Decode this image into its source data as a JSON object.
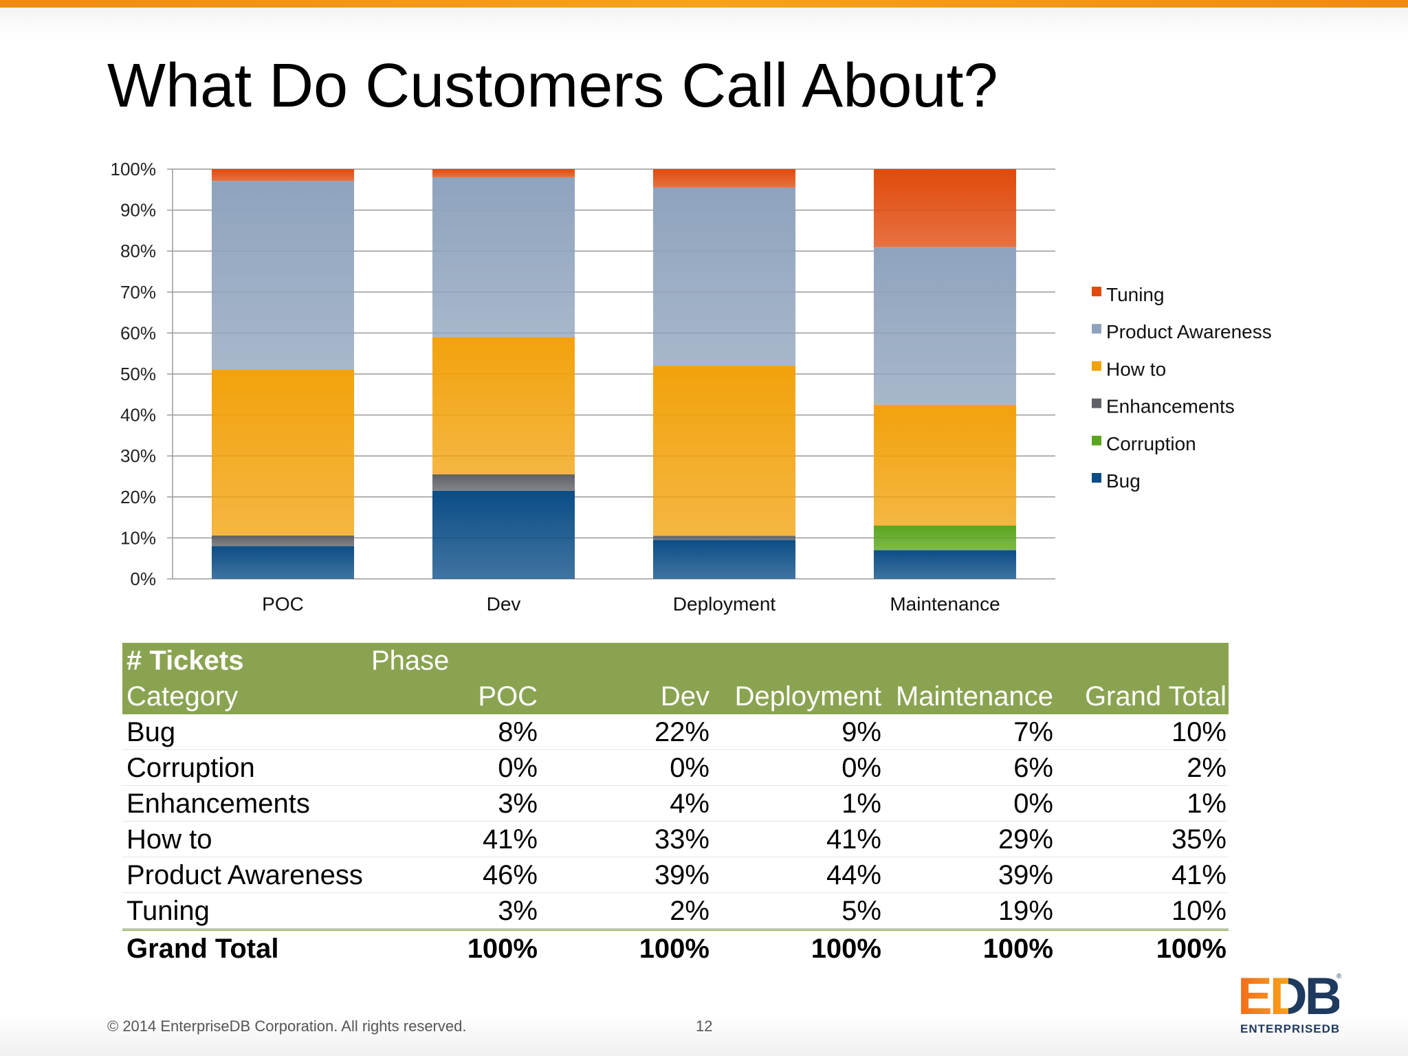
{
  "slide": {
    "title": "What Do Customers Call About?",
    "copyright": "© 2014 EnterpriseDB Corporation. All rights reserved.",
    "page_number": "12"
  },
  "logo": {
    "mark": "EDB",
    "sub": "ENTERPRISEDB",
    "registered": "®"
  },
  "colors": {
    "Tuning": "#e04a0c",
    "Product Awareness": "#8fa3bd",
    "How to": "#f2a20c",
    "Enhancements": "#5f6166",
    "Corruption": "#5ba51e",
    "Bug": "#0b4d86",
    "header": "#8aa351"
  },
  "chart_data": {
    "type": "bar",
    "stacked": true,
    "percent": true,
    "categories": [
      "POC",
      "Dev",
      "Deployment",
      "Maintenance"
    ],
    "y_tick_labels": [
      "0%",
      "10%",
      "20%",
      "30%",
      "40%",
      "50%",
      "60%",
      "70%",
      "80%",
      "90%",
      "100%"
    ],
    "ylim": [
      0,
      100
    ],
    "grid": true,
    "legend_position": "right",
    "series": [
      {
        "name": "Bug",
        "values": [
          8,
          21.5,
          9.5,
          7
        ]
      },
      {
        "name": "Corruption",
        "values": [
          0,
          0,
          0,
          6
        ]
      },
      {
        "name": "Enhancements",
        "values": [
          2.6,
          4,
          1,
          0
        ]
      },
      {
        "name": "How to",
        "values": [
          40.5,
          33.5,
          41.5,
          29.5
        ]
      },
      {
        "name": "Product Awareness",
        "values": [
          46,
          39,
          43.5,
          38.5
        ]
      },
      {
        "name": "Tuning",
        "values": [
          2.9,
          2,
          4.5,
          19
        ]
      }
    ],
    "legend_order": [
      "Tuning",
      "Product Awareness",
      "How to",
      "Enhancements",
      "Corruption",
      "Bug"
    ]
  },
  "table": {
    "title": "# Tickets",
    "phase_label": "Phase",
    "columns": [
      "Category",
      "POC",
      "Dev",
      "Deployment",
      "Maintenance",
      "Grand Total"
    ],
    "rows": [
      [
        "Bug",
        "8%",
        "22%",
        "9%",
        "7%",
        "10%"
      ],
      [
        "Corruption",
        "0%",
        "0%",
        "0%",
        "6%",
        "2%"
      ],
      [
        "Enhancements",
        "3%",
        "4%",
        "1%",
        "0%",
        "1%"
      ],
      [
        "How to",
        "41%",
        "33%",
        "41%",
        "29%",
        "35%"
      ],
      [
        "Product Awareness",
        "46%",
        "39%",
        "44%",
        "39%",
        "41%"
      ],
      [
        "Tuning",
        "3%",
        "2%",
        "5%",
        "19%",
        "10%"
      ]
    ],
    "total": [
      "Grand Total",
      "100%",
      "100%",
      "100%",
      "100%",
      "100%"
    ]
  }
}
